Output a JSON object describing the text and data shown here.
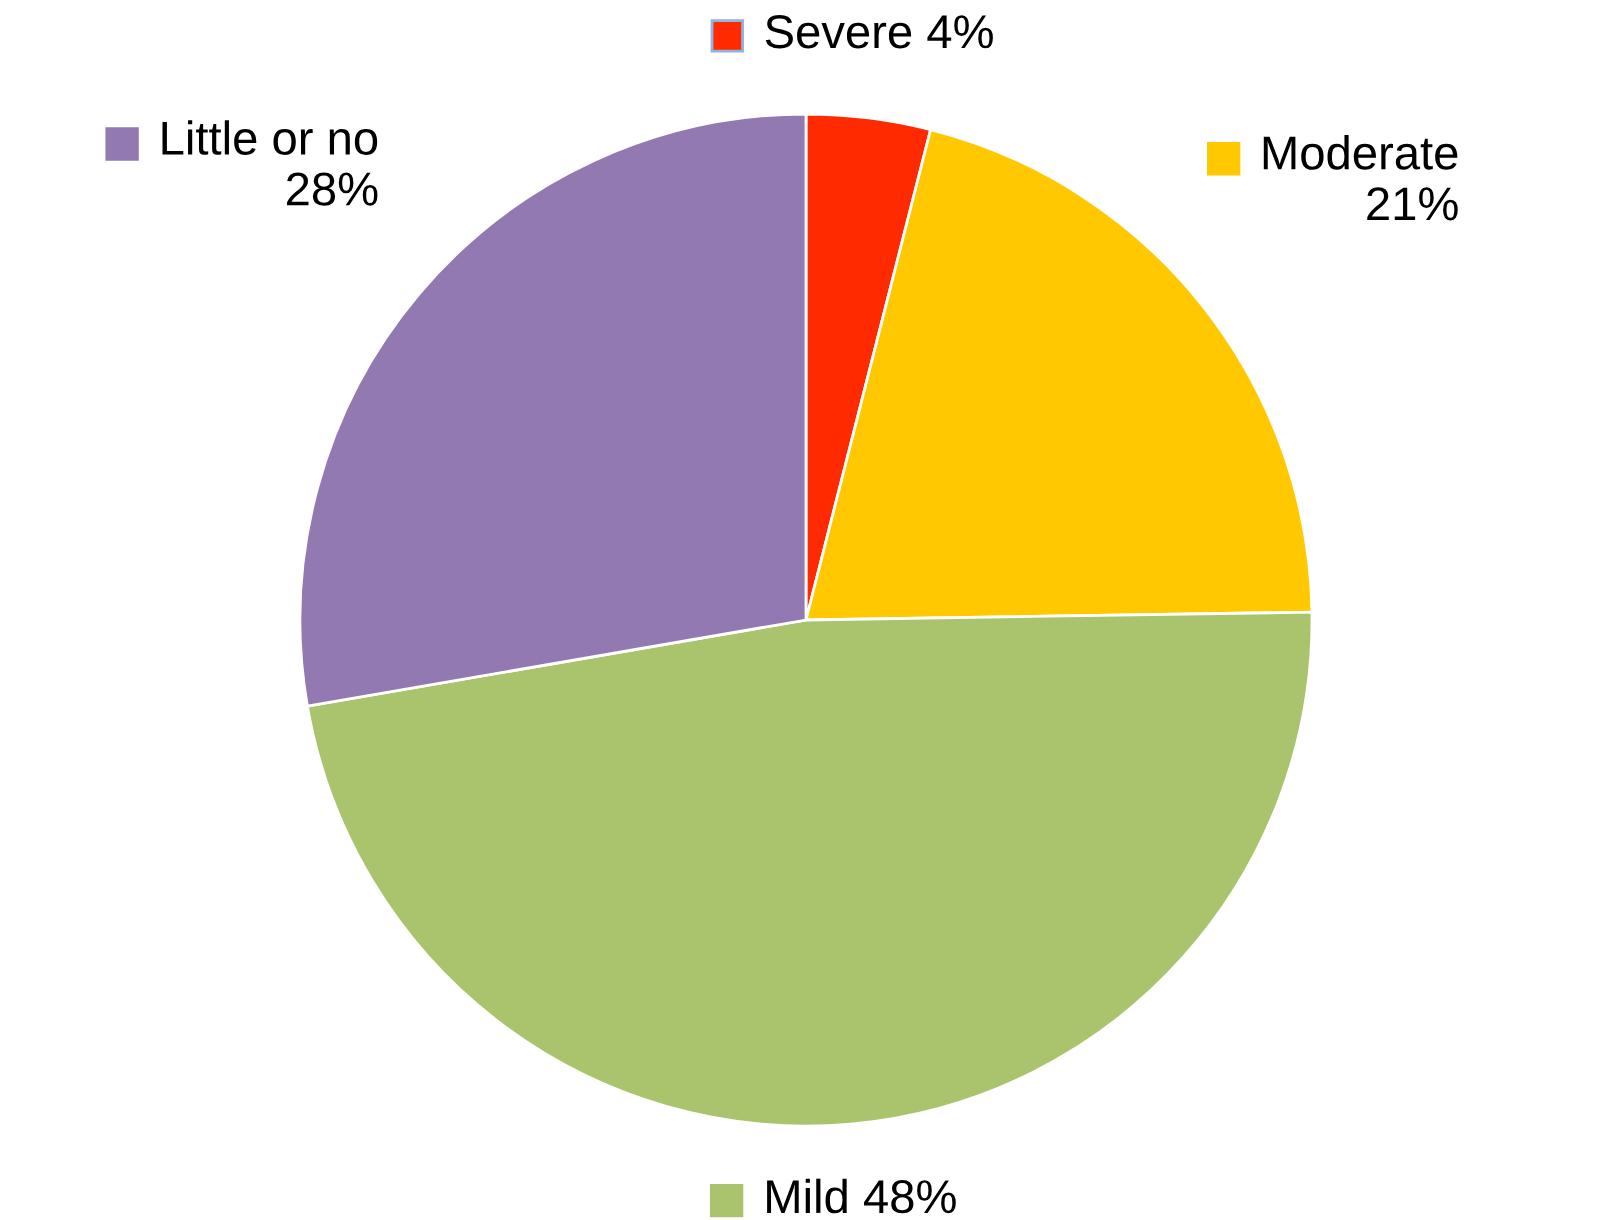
{
  "chart_data": {
    "type": "pie",
    "categories": [
      "Severe",
      "Moderate",
      "Mild",
      "Little or no"
    ],
    "values": [
      4,
      21,
      48,
      28
    ],
    "value_labels": [
      "4%",
      "21%",
      "48%",
      "28%"
    ],
    "colors": [
      "#ff2a00",
      "#ffc800",
      "#a9c46c",
      "#9279b1"
    ],
    "legend": "top left"
  }
}
